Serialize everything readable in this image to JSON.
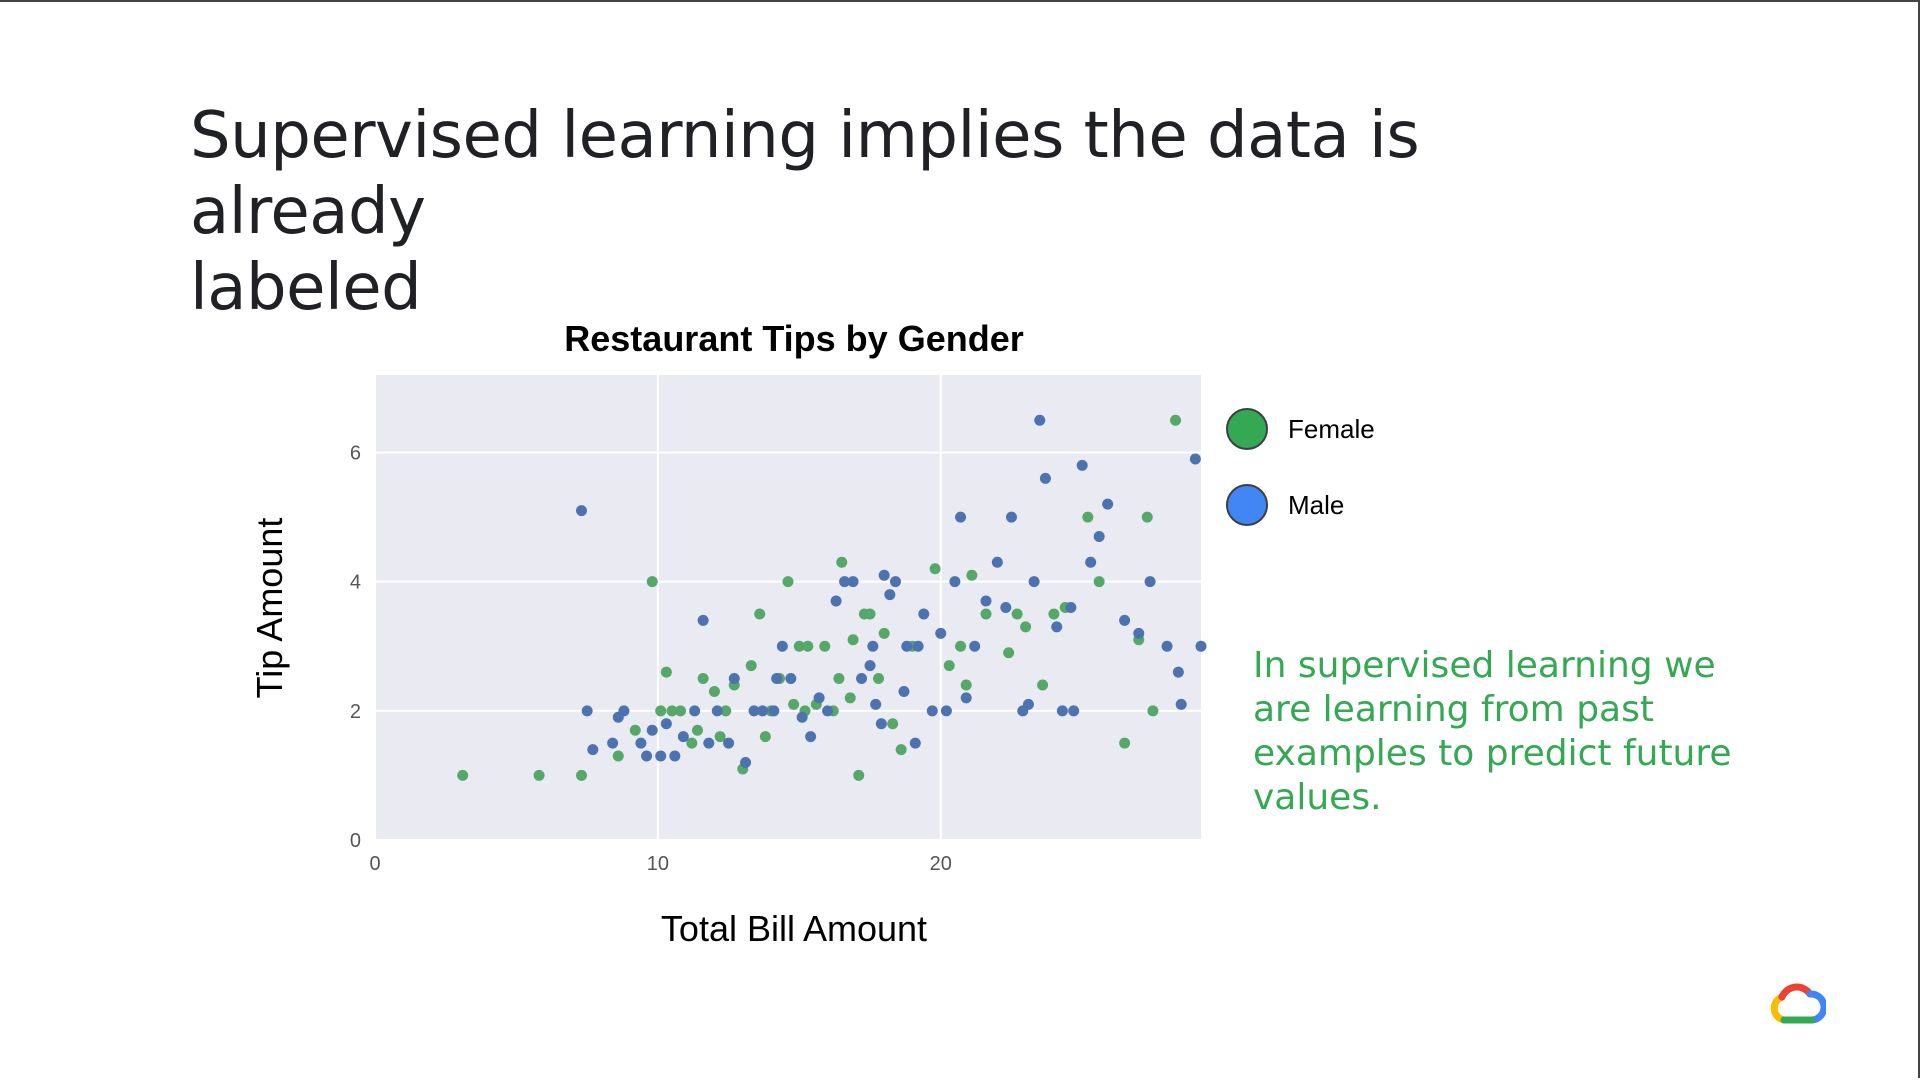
{
  "slide": {
    "title_line1": "Supervised learning implies the data is already",
    "title_line2": "labeled",
    "note": "In supervised learning we are learning from past examples to predict future values.",
    "logo_icon": "google-cloud-icon"
  },
  "colors": {
    "female": "#55a868",
    "male": "#4c72b0",
    "legend_female": "#34a853",
    "legend_male": "#4285f4",
    "plot_bg": "#eaeaf2",
    "grid": "#ffffff",
    "note_text": "#34a853"
  },
  "chart_data": {
    "type": "scatter",
    "title": "Restaurant Tips by Gender",
    "xlabel": "Total Bill Amount",
    "ylabel": "Tip Amount",
    "xlim": [
      0,
      29.2
    ],
    "ylim": [
      0,
      7.2
    ],
    "xticks": [
      0,
      10,
      20
    ],
    "yticks": [
      0,
      2,
      4,
      6
    ],
    "grid": true,
    "legend_position": "right",
    "series": [
      {
        "name": "Female",
        "points": [
          [
            3.1,
            1.0
          ],
          [
            5.8,
            1.0
          ],
          [
            7.3,
            1.0
          ],
          [
            9.8,
            4.0
          ],
          [
            10.3,
            2.6
          ],
          [
            10.1,
            2.0
          ],
          [
            10.5,
            2.0
          ],
          [
            10.8,
            2.0
          ],
          [
            11.2,
            1.5
          ],
          [
            11.6,
            2.5
          ],
          [
            12.0,
            2.3
          ],
          [
            12.4,
            2.0
          ],
          [
            12.7,
            2.4
          ],
          [
            13.0,
            1.1
          ],
          [
            13.3,
            2.7
          ],
          [
            13.6,
            3.5
          ],
          [
            14.0,
            2.0
          ],
          [
            14.3,
            2.5
          ],
          [
            14.6,
            4.0
          ],
          [
            15.0,
            3.0
          ],
          [
            15.3,
            3.0
          ],
          [
            15.6,
            2.1
          ],
          [
            15.9,
            3.0
          ],
          [
            16.2,
            2.0
          ],
          [
            16.4,
            2.5
          ],
          [
            16.5,
            4.3
          ],
          [
            16.9,
            3.1
          ],
          [
            17.1,
            1.0
          ],
          [
            17.3,
            3.5
          ],
          [
            17.5,
            3.5
          ],
          [
            17.8,
            2.5
          ],
          [
            18.0,
            3.2
          ],
          [
            18.3,
            1.8
          ],
          [
            18.6,
            1.4
          ],
          [
            19.0,
            3.0
          ],
          [
            19.8,
            4.2
          ],
          [
            20.3,
            2.7
          ],
          [
            20.7,
            3.0
          ],
          [
            20.9,
            2.4
          ],
          [
            21.1,
            4.1
          ],
          [
            21.6,
            3.5
          ],
          [
            22.4,
            2.9
          ],
          [
            22.7,
            3.5
          ],
          [
            23.0,
            3.3
          ],
          [
            23.6,
            2.4
          ],
          [
            24.0,
            3.5
          ],
          [
            24.4,
            3.6
          ],
          [
            25.2,
            5.0
          ],
          [
            25.6,
            4.0
          ],
          [
            26.5,
            1.5
          ],
          [
            27.0,
            3.1
          ],
          [
            27.3,
            5.0
          ],
          [
            27.5,
            2.0
          ],
          [
            28.3,
            6.5
          ],
          [
            9.2,
            1.7
          ],
          [
            8.6,
            1.3
          ],
          [
            11.4,
            1.7
          ],
          [
            12.2,
            1.6
          ],
          [
            13.8,
            1.6
          ],
          [
            15.2,
            2.0
          ],
          [
            16.8,
            2.2
          ],
          [
            14.8,
            2.1
          ]
        ]
      },
      {
        "name": "Male",
        "points": [
          [
            7.3,
            5.1
          ],
          [
            7.5,
            2.0
          ],
          [
            7.7,
            1.4
          ],
          [
            8.4,
            1.5
          ],
          [
            8.6,
            1.9
          ],
          [
            8.8,
            2.0
          ],
          [
            9.4,
            1.5
          ],
          [
            9.6,
            1.3
          ],
          [
            9.8,
            1.7
          ],
          [
            10.1,
            1.3
          ],
          [
            10.3,
            1.8
          ],
          [
            10.6,
            1.3
          ],
          [
            10.9,
            1.6
          ],
          [
            11.3,
            2.0
          ],
          [
            11.6,
            3.4
          ],
          [
            11.8,
            1.5
          ],
          [
            12.1,
            2.0
          ],
          [
            12.5,
            1.5
          ],
          [
            12.7,
            2.5
          ],
          [
            13.1,
            1.2
          ],
          [
            13.4,
            2.0
          ],
          [
            13.7,
            2.0
          ],
          [
            14.1,
            2.0
          ],
          [
            14.4,
            3.0
          ],
          [
            14.7,
            2.5
          ],
          [
            15.1,
            1.9
          ],
          [
            15.4,
            1.6
          ],
          [
            15.7,
            2.2
          ],
          [
            16.0,
            2.0
          ],
          [
            16.3,
            3.7
          ],
          [
            16.6,
            4.0
          ],
          [
            16.9,
            4.0
          ],
          [
            17.2,
            2.5
          ],
          [
            17.5,
            2.7
          ],
          [
            17.7,
            2.1
          ],
          [
            17.9,
            1.8
          ],
          [
            18.0,
            4.1
          ],
          [
            18.2,
            3.8
          ],
          [
            18.4,
            4.0
          ],
          [
            18.7,
            2.3
          ],
          [
            19.1,
            1.5
          ],
          [
            19.4,
            3.5
          ],
          [
            19.7,
            2.0
          ],
          [
            20.0,
            3.2
          ],
          [
            20.2,
            2.0
          ],
          [
            20.5,
            4.0
          ],
          [
            20.7,
            5.0
          ],
          [
            20.9,
            2.2
          ],
          [
            21.2,
            3.0
          ],
          [
            21.6,
            3.7
          ],
          [
            22.0,
            4.3
          ],
          [
            22.5,
            5.0
          ],
          [
            22.9,
            2.0
          ],
          [
            23.1,
            2.1
          ],
          [
            23.3,
            4.0
          ],
          [
            23.5,
            6.5
          ],
          [
            23.7,
            5.6
          ],
          [
            24.1,
            3.3
          ],
          [
            24.3,
            2.0
          ],
          [
            24.7,
            2.0
          ],
          [
            25.0,
            5.8
          ],
          [
            25.3,
            4.3
          ],
          [
            25.6,
            4.7
          ],
          [
            25.9,
            5.2
          ],
          [
            26.5,
            3.4
          ],
          [
            27.0,
            3.2
          ],
          [
            27.4,
            4.0
          ],
          [
            28.0,
            3.0
          ],
          [
            28.4,
            2.6
          ],
          [
            28.5,
            2.1
          ],
          [
            29.0,
            5.9
          ],
          [
            29.2,
            3.0
          ],
          [
            14.2,
            2.5
          ],
          [
            17.6,
            3.0
          ],
          [
            18.8,
            3.0
          ],
          [
            19.2,
            3.0
          ],
          [
            22.3,
            3.6
          ],
          [
            24.6,
            3.6
          ]
        ]
      }
    ]
  }
}
